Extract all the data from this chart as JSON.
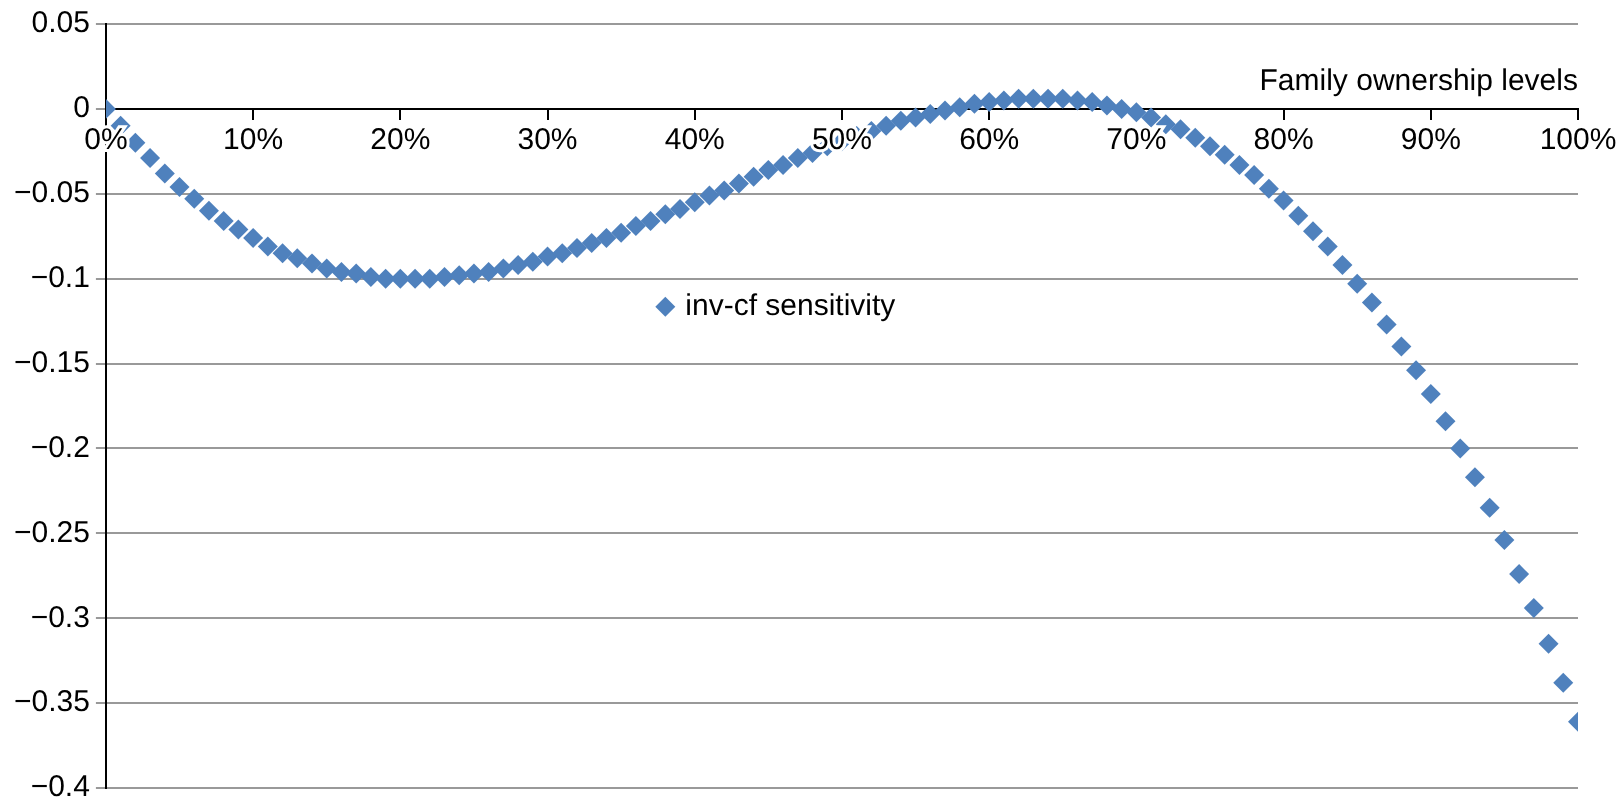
{
  "chart_data": {
    "type": "scatter",
    "xlabel": "Family ownership levels",
    "x": [
      0,
      1,
      2,
      3,
      4,
      5,
      6,
      7,
      8,
      9,
      10,
      11,
      12,
      13,
      14,
      15,
      16,
      17,
      18,
      19,
      20,
      21,
      22,
      23,
      24,
      25,
      26,
      27,
      28,
      29,
      30,
      31,
      32,
      33,
      34,
      35,
      36,
      37,
      38,
      39,
      40,
      41,
      42,
      43,
      44,
      45,
      46,
      47,
      48,
      49,
      50,
      51,
      52,
      53,
      54,
      55,
      56,
      57,
      58,
      59,
      60,
      61,
      62,
      63,
      64,
      65,
      66,
      67,
      68,
      69,
      70,
      71,
      72,
      73,
      74,
      75,
      76,
      77,
      78,
      79,
      80,
      81,
      82,
      83,
      84,
      85,
      86,
      87,
      88,
      89,
      90,
      91,
      92,
      93,
      94,
      95,
      96,
      97,
      98,
      99,
      100
    ],
    "series": [
      {
        "name": "inv-cf sensitivity",
        "color": "#4f81bd",
        "values": [
          0,
          -0.01,
          -0.02,
          -0.029,
          -0.038,
          -0.046,
          -0.053,
          -0.06,
          -0.066,
          -0.071,
          -0.076,
          -0.081,
          -0.085,
          -0.088,
          -0.091,
          -0.094,
          -0.096,
          -0.097,
          -0.099,
          -0.1,
          -0.1,
          -0.1,
          -0.1,
          -0.099,
          -0.098,
          -0.097,
          -0.096,
          -0.094,
          -0.092,
          -0.09,
          -0.087,
          -0.085,
          -0.082,
          -0.079,
          -0.076,
          -0.073,
          -0.069,
          -0.066,
          -0.062,
          -0.059,
          -0.055,
          -0.051,
          -0.048,
          -0.044,
          -0.04,
          -0.036,
          -0.033,
          -0.029,
          -0.026,
          -0.022,
          -0.019,
          -0.016,
          -0.013,
          -0.01,
          -0.007,
          -0.005,
          -0.003,
          -0.001,
          0.001,
          0.003,
          0.004,
          0.005,
          0.006,
          0.006,
          0.006,
          0.006,
          0.005,
          0.004,
          0.002,
          0.0,
          -0.002,
          -0.005,
          -0.009,
          -0.012,
          -0.017,
          -0.022,
          -0.027,
          -0.033,
          -0.039,
          -0.047,
          -0.054,
          -0.063,
          -0.072,
          -0.081,
          -0.092,
          -0.103,
          -0.114,
          -0.127,
          -0.14,
          -0.154,
          -0.168,
          -0.184,
          -0.2,
          -0.217,
          -0.235,
          -0.254,
          -0.274,
          -0.294,
          -0.315,
          -0.338,
          -0.361
        ]
      }
    ],
    "xlim": [
      0,
      100
    ],
    "xticks": [
      {
        "value": 0,
        "label": "0%"
      },
      {
        "value": 10,
        "label": "10%"
      },
      {
        "value": 20,
        "label": "20%"
      },
      {
        "value": 30,
        "label": "30%"
      },
      {
        "value": 40,
        "label": "40%"
      },
      {
        "value": 50,
        "label": "50%"
      },
      {
        "value": 60,
        "label": "60%"
      },
      {
        "value": 70,
        "label": "70%"
      },
      {
        "value": 80,
        "label": "80%"
      },
      {
        "value": 90,
        "label": "90%"
      },
      {
        "value": 100,
        "label": "100%"
      }
    ],
    "ylim": [
      -0.4,
      0.05
    ],
    "yticks": [
      0.05,
      0,
      {
        "value": -0.05,
        "label": "−0.05"
      },
      {
        "value": -0.1,
        "label": "−0.1"
      },
      {
        "value": -0.15,
        "label": "−0.15"
      },
      {
        "value": -0.2,
        "label": "−0.2"
      },
      {
        "value": -0.25,
        "label": "−0.25"
      },
      {
        "value": -0.3,
        "label": "−0.3"
      },
      {
        "value": -0.35,
        "label": "−0.35"
      },
      {
        "value": -0.4,
        "label": "−0.4"
      }
    ],
    "grid": "y",
    "legend": "top",
    "marker": "diamond"
  }
}
